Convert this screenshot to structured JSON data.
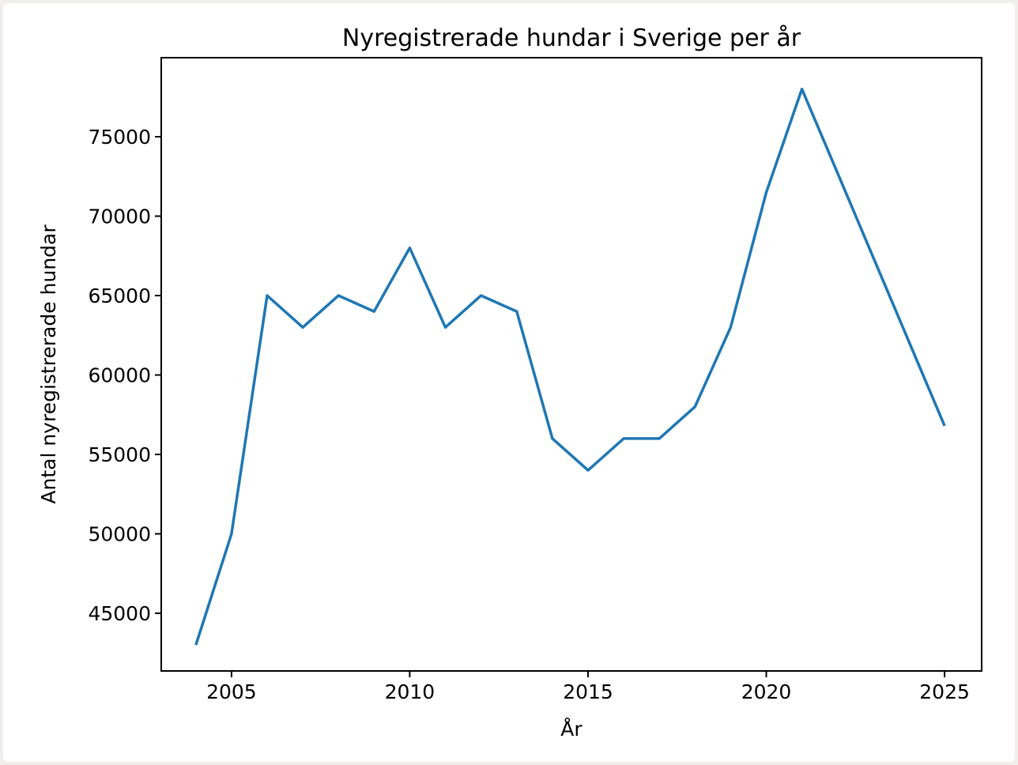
{
  "figure": {
    "background": "#ffffff",
    "frame_color": "#f1efec"
  },
  "chart_data": {
    "type": "line",
    "title": "Nyregistrerade hundar i Sverige per år",
    "xlabel": "År",
    "ylabel": "Antal nyregistrerade hundar",
    "x": [
      2004,
      2005,
      2006,
      2007,
      2008,
      2009,
      2010,
      2011,
      2012,
      2013,
      2014,
      2015,
      2016,
      2017,
      2018,
      2019,
      2020,
      2021,
      2022,
      2023,
      2024,
      2025
    ],
    "values": [
      43000,
      50000,
      65000,
      63000,
      65000,
      64000,
      68000,
      63000,
      65000,
      64000,
      56000,
      54000,
      56000,
      56000,
      58000,
      63000,
      71500,
      78000,
      72700,
      67400,
      62100,
      56800
    ],
    "x_ticks": [
      2005,
      2010,
      2015,
      2020,
      2025
    ],
    "y_ticks": [
      45000,
      50000,
      55000,
      60000,
      65000,
      70000,
      75000
    ],
    "xlim": [
      2003.03,
      2026.04
    ],
    "ylim": [
      41370,
      79975
    ],
    "grid": false,
    "legend": null,
    "line_color": "#1f77b4",
    "axis_color": "#000000",
    "text_color": "#000000"
  }
}
